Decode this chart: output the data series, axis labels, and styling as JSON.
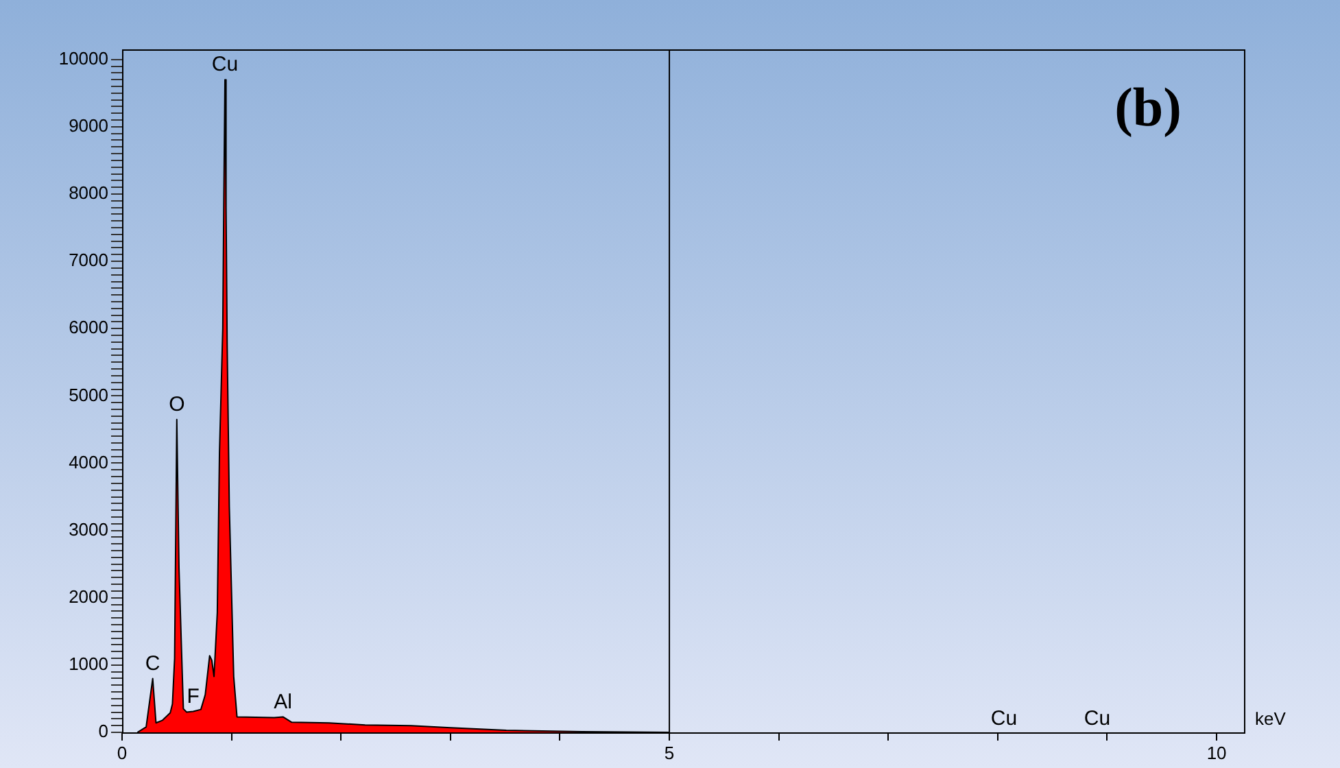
{
  "chart_data": {
    "type": "area",
    "title": "(b)",
    "xlabel": "keV",
    "xlim": [
      0,
      10.25
    ],
    "ylim": [
      0,
      10150
    ],
    "xticks": [
      0,
      {
        "value": 1,
        "label": null
      },
      {
        "value": 2,
        "label": null
      },
      {
        "value": 3,
        "label": null
      },
      {
        "value": 4,
        "label": null
      },
      5,
      {
        "value": 6,
        "label": null
      },
      {
        "value": 7,
        "label": null
      },
      {
        "value": 8,
        "label": null
      },
      {
        "value": 9,
        "label": null
      },
      10
    ],
    "yticks": [
      0,
      {
        "value": 100,
        "label": null
      },
      {
        "value": 200,
        "label": null
      },
      {
        "value": 300,
        "label": null
      },
      {
        "value": 400,
        "label": null
      },
      {
        "value": 500,
        "label": null
      },
      {
        "value": 600,
        "label": null
      },
      {
        "value": 700,
        "label": null
      },
      {
        "value": 800,
        "label": null
      },
      {
        "value": 900,
        "label": null
      },
      1000,
      {
        "value": 1100,
        "label": null
      },
      {
        "value": 1200,
        "label": null
      },
      {
        "value": 1300,
        "label": null
      },
      {
        "value": 1400,
        "label": null
      },
      {
        "value": 1500,
        "label": null
      },
      {
        "value": 1600,
        "label": null
      },
      {
        "value": 1700,
        "label": null
      },
      {
        "value": 1800,
        "label": null
      },
      {
        "value": 1900,
        "label": null
      },
      2000,
      {
        "value": 2100,
        "label": null
      },
      {
        "value": 2200,
        "label": null
      },
      {
        "value": 2300,
        "label": null
      },
      {
        "value": 2400,
        "label": null
      },
      {
        "value": 2500,
        "label": null
      },
      {
        "value": 2600,
        "label": null
      },
      {
        "value": 2700,
        "label": null
      },
      {
        "value": 2800,
        "label": null
      },
      {
        "value": 2900,
        "label": null
      },
      3000,
      {
        "value": 3100,
        "label": null
      },
      {
        "value": 3200,
        "label": null
      },
      {
        "value": 3300,
        "label": null
      },
      {
        "value": 3400,
        "label": null
      },
      {
        "value": 3500,
        "label": null
      },
      {
        "value": 3600,
        "label": null
      },
      {
        "value": 3700,
        "label": null
      },
      {
        "value": 3800,
        "label": null
      },
      {
        "value": 3900,
        "label": null
      },
      4000,
      {
        "value": 4100,
        "label": null
      },
      {
        "value": 4200,
        "label": null
      },
      {
        "value": 4300,
        "label": null
      },
      {
        "value": 4400,
        "label": null
      },
      {
        "value": 4500,
        "label": null
      },
      {
        "value": 4600,
        "label": null
      },
      {
        "value": 4700,
        "label": null
      },
      {
        "value": 4800,
        "label": null
      },
      {
        "value": 4900,
        "label": null
      },
      5000,
      {
        "value": 5100,
        "label": null
      },
      {
        "value": 5200,
        "label": null
      },
      {
        "value": 5300,
        "label": null
      },
      {
        "value": 5400,
        "label": null
      },
      {
        "value": 5500,
        "label": null
      },
      {
        "value": 5600,
        "label": null
      },
      {
        "value": 5700,
        "label": null
      },
      {
        "value": 5800,
        "label": null
      },
      {
        "value": 5900,
        "label": null
      },
      6000,
      {
        "value": 6100,
        "label": null
      },
      {
        "value": 6200,
        "label": null
      },
      {
        "value": 6300,
        "label": null
      },
      {
        "value": 6400,
        "label": null
      },
      {
        "value": 6500,
        "label": null
      },
      {
        "value": 6600,
        "label": null
      },
      {
        "value": 6700,
        "label": null
      },
      {
        "value": 6800,
        "label": null
      },
      {
        "value": 6900,
        "label": null
      },
      7000,
      {
        "value": 7100,
        "label": null
      },
      {
        "value": 7200,
        "label": null
      },
      {
        "value": 7300,
        "label": null
      },
      {
        "value": 7400,
        "label": null
      },
      {
        "value": 7500,
        "label": null
      },
      {
        "value": 7600,
        "label": null
      },
      {
        "value": 7700,
        "label": null
      },
      {
        "value": 7800,
        "label": null
      },
      {
        "value": 7900,
        "label": null
      },
      8000,
      {
        "value": 8100,
        "label": null
      },
      {
        "value": 8200,
        "label": null
      },
      {
        "value": 8300,
        "label": null
      },
      {
        "value": 8400,
        "label": null
      },
      {
        "value": 8500,
        "label": null
      },
      {
        "value": 8600,
        "label": null
      },
      {
        "value": 8700,
        "label": null
      },
      {
        "value": 8800,
        "label": null
      },
      {
        "value": 8900,
        "label": null
      },
      9000,
      {
        "value": 9100,
        "label": null
      },
      {
        "value": 9200,
        "label": null
      },
      {
        "value": 9300,
        "label": null
      },
      {
        "value": 9400,
        "label": null
      },
      {
        "value": 9500,
        "label": null
      },
      {
        "value": 9600,
        "label": null
      },
      {
        "value": 9700,
        "label": null
      },
      {
        "value": 9800,
        "label": null
      },
      {
        "value": 9900,
        "label": null
      },
      10000
    ],
    "grid": false,
    "legend": false,
    "marker": "none",
    "line_style": "solid",
    "series": [
      {
        "color": "#ff0000",
        "x": [
          0.14,
          0.22,
          0.28,
          0.31,
          0.37,
          0.44,
          0.46,
          0.48,
          0.5,
          0.52,
          0.56,
          0.59,
          0.65,
          0.72,
          0.76,
          0.8,
          0.82,
          0.84,
          0.87,
          0.89,
          0.92,
          0.93,
          0.94,
          0.95,
          0.96,
          0.98,
          1.02,
          1.05,
          1.39,
          1.47,
          1.55,
          1.89,
          2.22,
          2.64,
          3.0,
          3.51,
          4.2,
          5.0
        ],
        "values": [
          0,
          80,
          800,
          140,
          180,
          290,
          420,
          1100,
          4650,
          2450,
          350,
          300,
          310,
          340,
          560,
          1140,
          1070,
          830,
          1780,
          4160,
          6000,
          8000,
          9700,
          7800,
          5800,
          3350,
          830,
          230,
          220,
          230,
          150,
          140,
          110,
          100,
          70,
          30,
          10,
          0
        ]
      }
    ],
    "ref_lines": [
      {
        "axis": "x",
        "value": 5,
        "color": "#000000"
      }
    ],
    "annotations": [
      {
        "text": "Cu",
        "x": 0.94,
        "y": 9700
      },
      {
        "text": "O",
        "x": 0.5,
        "y": 4650
      },
      {
        "text": "C",
        "x": 0.28,
        "y": 800
      },
      {
        "text": "F",
        "x": 0.65,
        "y": 310
      },
      {
        "text": "Al",
        "x": 1.47,
        "y": 230
      },
      "Cu",
      "Cu"
    ]
  }
}
